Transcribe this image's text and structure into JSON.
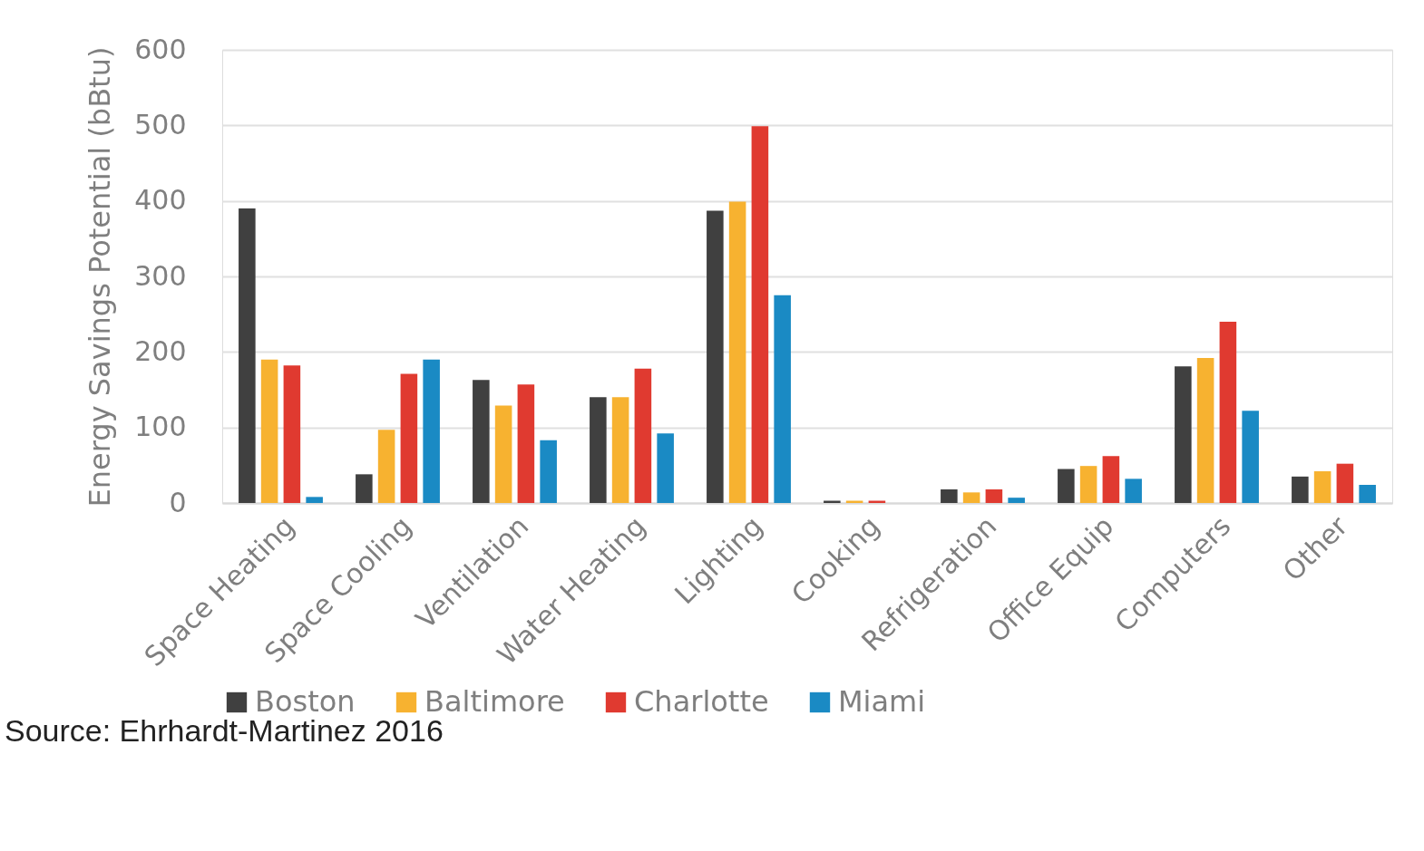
{
  "chart_data": {
    "type": "bar",
    "ylabel": "Energy Savings Potential (bBtu)",
    "categories": [
      "Space Heating",
      "Space Cooling",
      "Ventilation",
      "Water Heating",
      "Lighting",
      "Cooking",
      "Refrigeration",
      "Office Equip",
      "Computers",
      "Other"
    ],
    "series": [
      {
        "name": "Boston",
        "color": "#404040",
        "values": [
          390,
          38,
          163,
          140,
          387,
          3,
          18,
          45,
          181,
          35
        ]
      },
      {
        "name": "Baltimore",
        "color": "#f7b230",
        "values": [
          190,
          97,
          129,
          140,
          399,
          3,
          14,
          49,
          192,
          42
        ]
      },
      {
        "name": "Charlotte",
        "color": "#e03a30",
        "values": [
          182,
          171,
          157,
          178,
          499,
          3,
          18,
          62,
          240,
          52
        ]
      },
      {
        "name": "Miami",
        "color": "#1a8ac4",
        "values": [
          8,
          190,
          83,
          92,
          275,
          0,
          7,
          32,
          122,
          24
        ]
      }
    ],
    "ylim": [
      0,
      600
    ],
    "yticks": [
      0,
      100,
      200,
      300,
      400,
      500,
      600
    ],
    "grid": "y",
    "legend": "bottom",
    "annotations": [
      "Source: Ehrhardt-Martinez 2016"
    ]
  }
}
